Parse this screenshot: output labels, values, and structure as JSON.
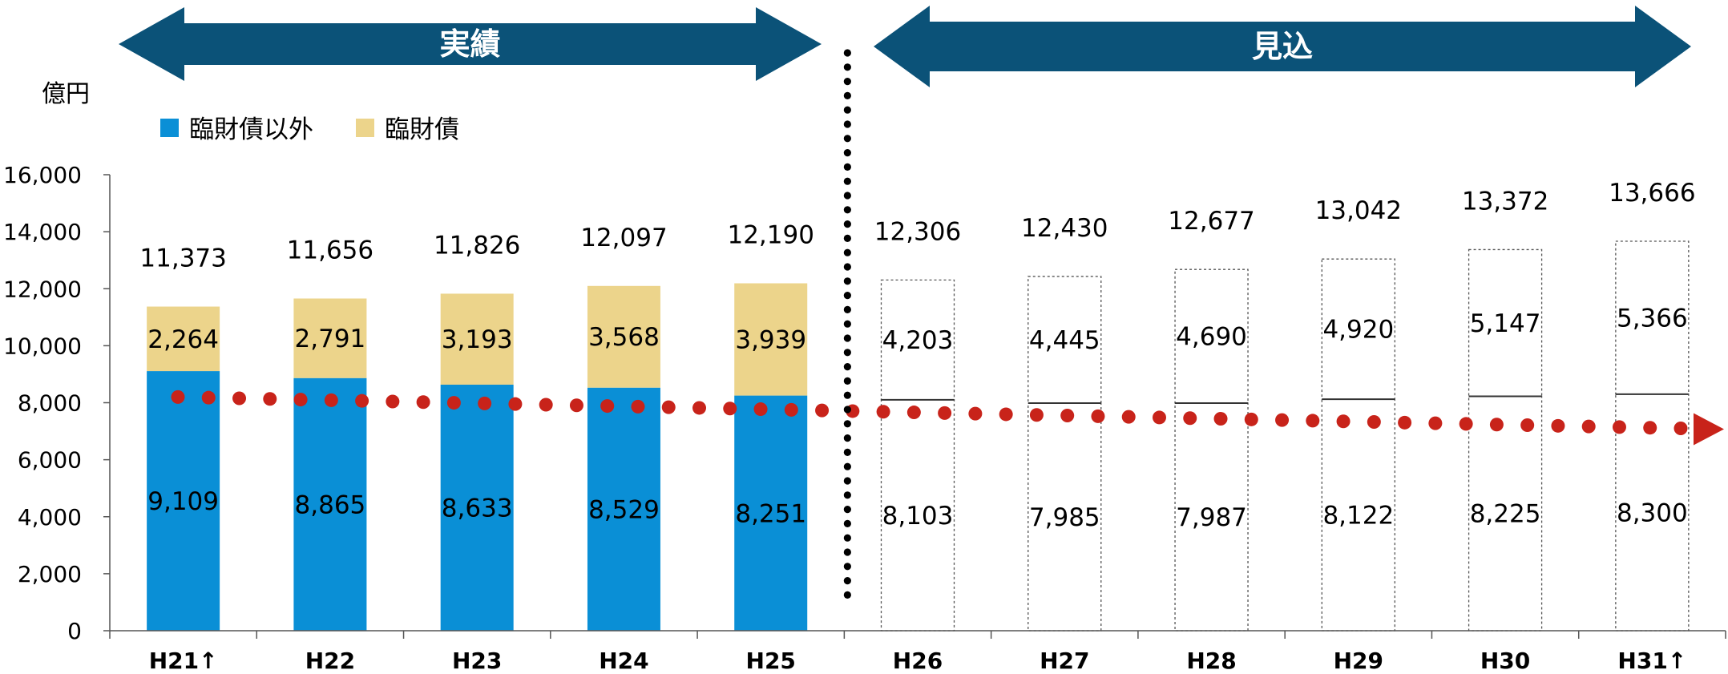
{
  "chart_data": {
    "type": "bar",
    "stacked": true,
    "unit": "億円",
    "categories": [
      "H21",
      "H22",
      "H23",
      "H24",
      "H25",
      "H26",
      "H27",
      "H28",
      "H29",
      "H30",
      "H31"
    ],
    "category_labels": [
      "H21↑",
      "H22",
      "H23",
      "H24",
      "H25",
      "H26",
      "H27",
      "H28",
      "H29",
      "H30",
      "H31↑"
    ],
    "series": [
      {
        "name": "臨財債以外",
        "color": "#0a8fd6",
        "values": [
          9109,
          8865,
          8633,
          8529,
          8251,
          8103,
          7985,
          7987,
          8122,
          8225,
          8300
        ]
      },
      {
        "name": "臨財債",
        "color": "#ecd48b",
        "values": [
          2264,
          2791,
          3193,
          3568,
          3939,
          4203,
          4445,
          4690,
          4920,
          5147,
          5366
        ]
      }
    ],
    "totals": [
      11373,
      11656,
      11826,
      12097,
      12190,
      12306,
      12430,
      12677,
      13042,
      13372,
      13666
    ],
    "value_labels": {
      "bottom": [
        "9,109",
        "8,865",
        "8,633",
        "8,529",
        "8,251",
        "8,103",
        "7,985",
        "7,987",
        "8,122",
        "8,225",
        "8,300"
      ],
      "top": [
        "2,264",
        "2,791",
        "3,193",
        "3,568",
        "3,939",
        "4,203",
        "4,445",
        "4,690",
        "4,920",
        "5,147",
        "5,366"
      ],
      "total": [
        "11,373",
        "11,656",
        "11,826",
        "12,097",
        "12,190",
        "12,306",
        "12,430",
        "12,677",
        "13,042",
        "13,372",
        "13,666"
      ]
    },
    "actual_count": 5,
    "projection_style": "outline-dashed",
    "ylim": [
      0,
      16000
    ],
    "yticks": [
      0,
      2000,
      4000,
      6000,
      8000,
      10000,
      12000,
      14000,
      16000
    ],
    "ytick_labels": [
      "0",
      "2,000",
      "4,000",
      "6,000",
      "8,000",
      "10,000",
      "12,000",
      "14,000",
      "16,000"
    ],
    "grid": false,
    "legend": "top-left",
    "trend_line": {
      "style": "red-dotted-arrow",
      "color": "#c8231a",
      "start": 8200,
      "end": 7100
    },
    "banners": [
      {
        "label": "実績",
        "color": "#0b5278",
        "span": "H21-H25"
      },
      {
        "label": "見込",
        "color": "#0b5278",
        "span": "H26-H31"
      }
    ],
    "divider_after": "H25"
  }
}
